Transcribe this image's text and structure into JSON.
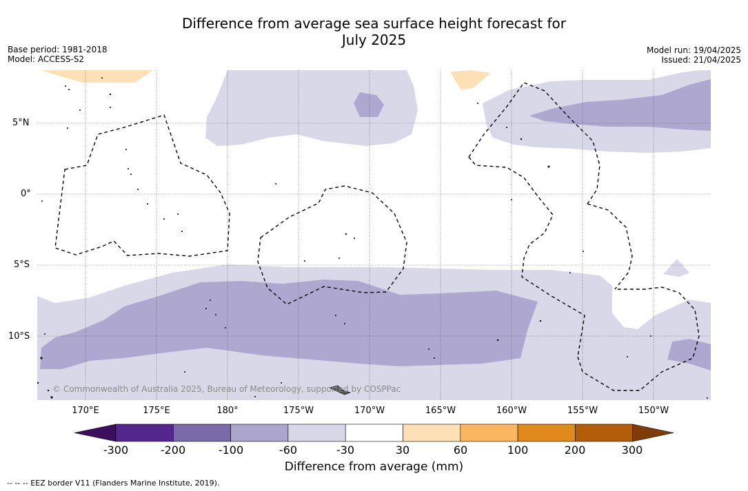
{
  "title_line1": "Difference from average sea surface height forecast for",
  "title_line2": "July 2025",
  "base_period": "Base period: 1981-2018",
  "model": "Model: ACCESS-S2",
  "model_run": "Model run: 19/04/2025",
  "issued": "Issued: 21/04/2025",
  "attribution": "© Commonwealth of Australia 2025, Bureau of Meteorology, supported by COSPPac",
  "lat_labels": [
    "5°N",
    "0°",
    "5°S",
    "10°S"
  ],
  "lon_labels": [
    "170°E",
    "175°E",
    "180°",
    "175°W",
    "170°W",
    "165°W",
    "160°W",
    "155°W",
    "150°W"
  ],
  "colorbar": {
    "title": "Difference from average (mm)",
    "ticks": [
      "-300",
      "-200",
      "-100",
      "-60",
      "-30",
      "30",
      "60",
      "100",
      "200",
      "300"
    ],
    "colors": [
      "#3b0f5e",
      "#54278f",
      "#7b6aaa",
      "#aca6cf",
      "#d7d7e8",
      "#ffffff",
      "#fde0b6",
      "#f9b660",
      "#e08a1e",
      "#b35c0a",
      "#7f3b08"
    ]
  },
  "legend_note": "--  --  -- EEZ border V11 (Flanders Marine Institute, 2019)."
}
